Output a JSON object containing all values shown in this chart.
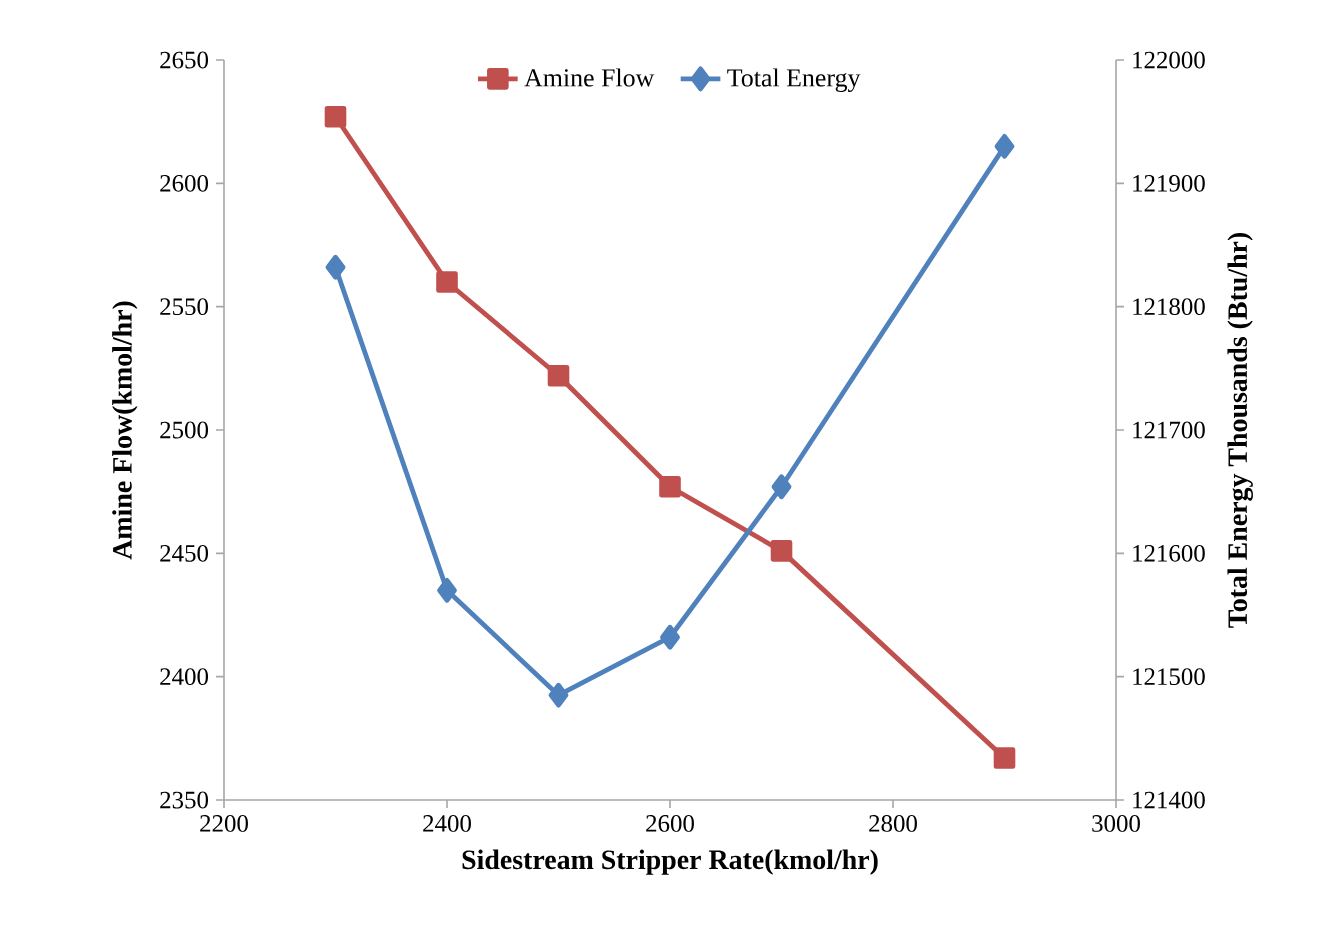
{
  "chart_data": {
    "type": "line",
    "xlabel": "Sidestream Stripper Rate(kmol/hr)",
    "ylabel": "Amine Flow(kmol/hr)",
    "y2label": "Total  Energy Thousands (Btu/hr)",
    "x": [
      2300,
      2400,
      2500,
      2600,
      2700,
      2900
    ],
    "xlim": [
      2200,
      3000
    ],
    "xticks": [
      2200,
      2400,
      2600,
      2800,
      3000
    ],
    "ylim": [
      2350,
      2650
    ],
    "yticks": [
      2350,
      2400,
      2450,
      2500,
      2550,
      2600,
      2650
    ],
    "y2lim": [
      121400,
      122000
    ],
    "y2ticks": [
      121400,
      121500,
      121600,
      121700,
      121800,
      121900,
      122000
    ],
    "series": [
      {
        "name": "Amine Flow",
        "color": "#c0504d",
        "marker": "square",
        "values": [
          2627,
          2560,
          2522,
          2477,
          2451,
          2367
        ]
      },
      {
        "name": "Total Energy",
        "color": "#4f81bd",
        "marker": "diamond",
        "axis": "y2",
        "values": [
          121832,
          121570,
          121485,
          121532,
          121654,
          121930
        ]
      }
    ],
    "legend": "top",
    "line_style": "solid",
    "grid": false
  }
}
